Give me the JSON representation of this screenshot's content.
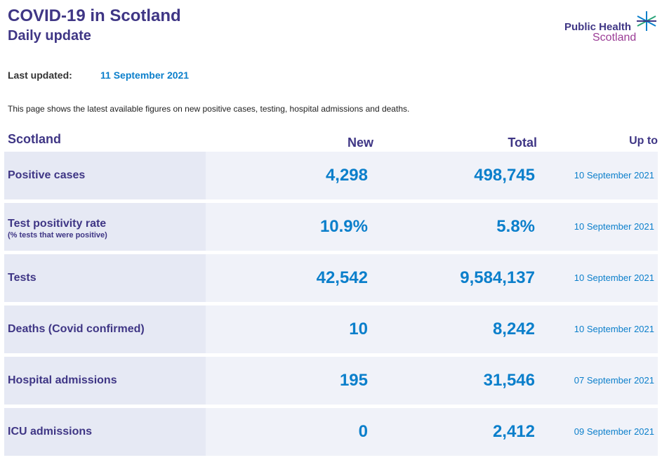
{
  "header": {
    "title": "COVID-19 in Scotland",
    "subtitle": "Daily update"
  },
  "logo": {
    "line1": "Public Health",
    "line2": "Scotland",
    "colors": {
      "primary": "#3f3685",
      "secondary": "#9b3d96",
      "star": "#0b7fcb",
      "star_accent": "#2aa47a"
    }
  },
  "last_updated": {
    "label": "Last updated:",
    "value": "11 September 2021"
  },
  "intro": "This page shows the latest available figures on new positive cases, testing, hospital admissions and deaths.",
  "table": {
    "headers": {
      "region": "Scotland",
      "new": "New",
      "total": "Total",
      "up_to": "Up to"
    },
    "rows": [
      {
        "label": "Positive cases",
        "sublabel": "",
        "new": "4,298",
        "total": "498,745",
        "date": "10 September 2021"
      },
      {
        "label": "Test positivity rate",
        "sublabel": "(% tests that were positive)",
        "new": "10.9%",
        "total": "5.8%",
        "date": "10 September 2021"
      },
      {
        "label": "Tests",
        "sublabel": "",
        "new": "42,542",
        "total": "9,584,137",
        "date": "10 September 2021"
      },
      {
        "label": "Deaths (Covid confirmed)",
        "sublabel": "",
        "new": "10",
        "total": "8,242",
        "date": "10 September 2021"
      },
      {
        "label": "Hospital admissions",
        "sublabel": "",
        "new": "195",
        "total": "31,546",
        "date": "07 September 2021"
      },
      {
        "label": "ICU admissions",
        "sublabel": "",
        "new": "0",
        "total": "2,412",
        "date": "09 September 2021"
      }
    ]
  },
  "colors": {
    "heading": "#3f3685",
    "value": "#0b7fcb",
    "label_bg": "#e6e9f4",
    "value_bg": "#f0f2f9"
  }
}
